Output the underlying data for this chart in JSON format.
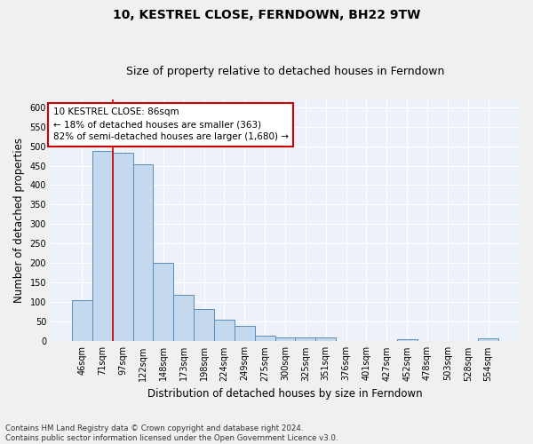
{
  "title": "10, KESTREL CLOSE, FERNDOWN, BH22 9TW",
  "subtitle": "Size of property relative to detached houses in Ferndown",
  "xlabel": "Distribution of detached houses by size in Ferndown",
  "ylabel": "Number of detached properties",
  "categories": [
    "46sqm",
    "71sqm",
    "97sqm",
    "122sqm",
    "148sqm",
    "173sqm",
    "198sqm",
    "224sqm",
    "249sqm",
    "275sqm",
    "300sqm",
    "325sqm",
    "351sqm",
    "376sqm",
    "401sqm",
    "427sqm",
    "452sqm",
    "478sqm",
    "503sqm",
    "528sqm",
    "554sqm"
  ],
  "values": [
    105,
    487,
    484,
    453,
    202,
    120,
    83,
    56,
    40,
    15,
    10,
    10,
    10,
    1,
    1,
    1,
    5,
    1,
    1,
    1,
    7
  ],
  "bar_color": "#c5d9ee",
  "bar_edge_color": "#5b8db8",
  "vline_x": 1.5,
  "vline_color": "#cc0000",
  "annotation_box_text": "10 KESTREL CLOSE: 86sqm\n← 18% of detached houses are smaller (363)\n82% of semi-detached houses are larger (1,680) →",
  "annotation_box_color": "#cc0000",
  "annotation_fill": "#ffffff",
  "ylim": [
    0,
    620
  ],
  "yticks": [
    0,
    50,
    100,
    150,
    200,
    250,
    300,
    350,
    400,
    450,
    500,
    550,
    600
  ],
  "background_color": "#edf2fa",
  "grid_color": "#ffffff",
  "footer_text": "Contains HM Land Registry data © Crown copyright and database right 2024.\nContains public sector information licensed under the Open Government Licence v3.0.",
  "title_fontsize": 10,
  "subtitle_fontsize": 9,
  "ylabel_fontsize": 8.5,
  "xlabel_fontsize": 8.5,
  "tick_fontsize": 7,
  "annotation_fontsize": 7.5
}
